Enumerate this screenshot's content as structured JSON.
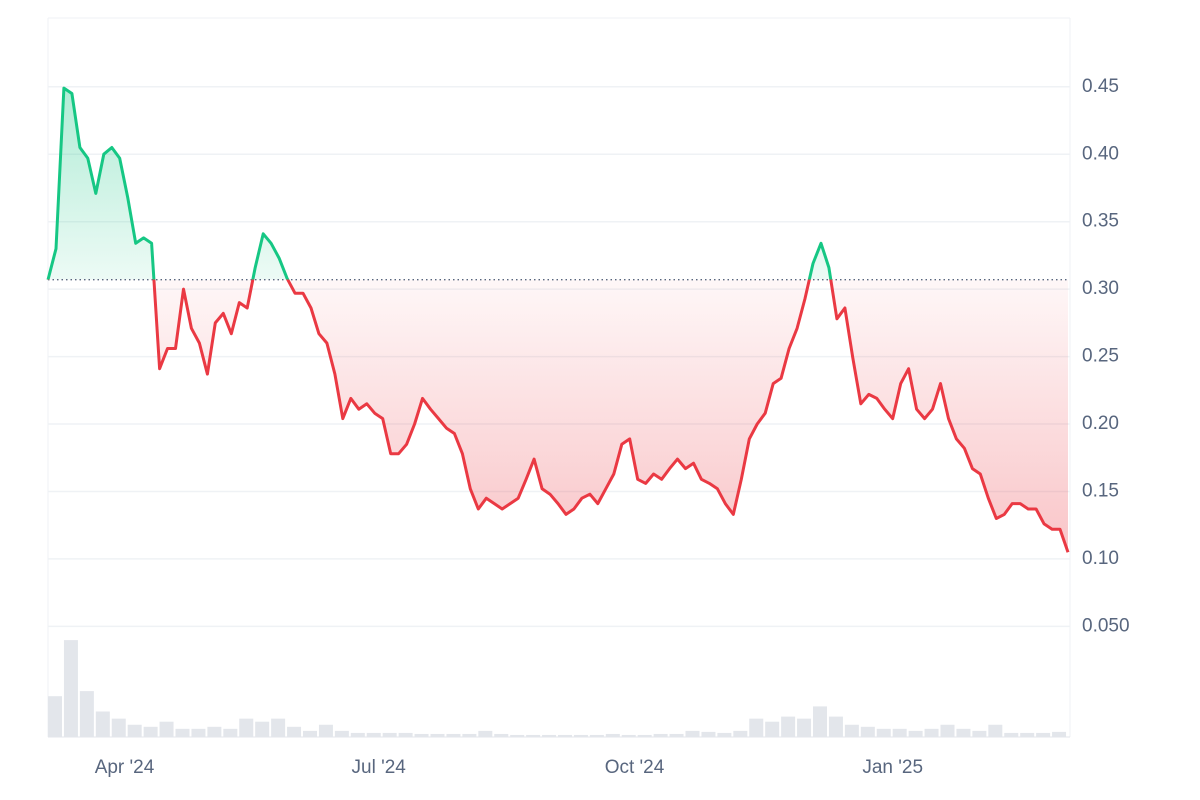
{
  "chart_data": {
    "type": "line",
    "color_up": "#16c784",
    "color_down": "#ea3943",
    "baseline": 0.307,
    "grid": true,
    "xlim": [
      0,
      128
    ],
    "xticks": [
      {
        "value": 9.6,
        "label": "Apr '24"
      },
      {
        "value": 41.5,
        "label": "Jul '24"
      },
      {
        "value": 73.6,
        "label": "Oct '24"
      },
      {
        "value": 106,
        "label": "Jan '25"
      }
    ],
    "ylim": [
      -0.032,
      0.501
    ],
    "yticks": [
      {
        "value": 0.05,
        "label": "0.050"
      },
      {
        "value": 0.1,
        "label": "0.10"
      },
      0.15,
      {
        "value": 0.2,
        "label": "0.20"
      },
      0.25,
      {
        "value": 0.3,
        "label": "0.30"
      },
      0.35,
      {
        "value": 0.4,
        "label": "0.40"
      },
      0.45
    ],
    "values": [
      0.307,
      0.33,
      0.449,
      0.445,
      0.405,
      0.397,
      0.371,
      0.4,
      0.405,
      0.397,
      0.368,
      0.334,
      0.338,
      0.334,
      0.241,
      0.256,
      0.256,
      0.3,
      0.271,
      0.26,
      0.237,
      0.275,
      0.282,
      0.267,
      0.29,
      0.286,
      0.316,
      0.341,
      0.334,
      0.323,
      0.308,
      0.297,
      0.297,
      0.286,
      0.267,
      0.26,
      0.237,
      0.204,
      0.219,
      0.211,
      0.215,
      0.208,
      0.204,
      0.178,
      0.178,
      0.185,
      0.2,
      0.219,
      0.211,
      0.204,
      0.197,
      0.193,
      0.178,
      0.152,
      0.137,
      0.145,
      0.141,
      0.137,
      0.141,
      0.145,
      0.159,
      0.174,
      0.152,
      0.148,
      0.141,
      0.133,
      0.137,
      0.145,
      0.148,
      0.141,
      0.152,
      0.163,
      0.185,
      0.189,
      0.159,
      0.156,
      0.163,
      0.159,
      0.167,
      0.174,
      0.167,
      0.171,
      0.159,
      0.156,
      0.152,
      0.141,
      0.133,
      0.159,
      0.189,
      0.2,
      0.208,
      0.23,
      0.234,
      0.256,
      0.271,
      0.293,
      0.319,
      0.334,
      0.316,
      0.278,
      0.286,
      0.249,
      0.215,
      0.222,
      0.219,
      0.211,
      0.204,
      0.23,
      0.241,
      0.211,
      0.204,
      0.211,
      0.23,
      0.204,
      0.189,
      0.182,
      0.167,
      0.163,
      0.145,
      0.13,
      0.133,
      0.141,
      0.141,
      0.137,
      0.137,
      0.126,
      0.122,
      0.122,
      0.105
    ],
    "volume": {
      "color": "#e3e6eb",
      "ylim": [
        0,
        100
      ],
      "values": [
        40,
        95,
        45,
        25,
        18,
        12,
        10,
        15,
        8,
        8,
        10,
        8,
        18,
        15,
        18,
        10,
        6,
        12,
        6,
        4,
        4,
        4,
        4,
        3,
        3,
        3,
        3,
        6,
        3,
        2,
        2,
        2,
        2,
        2,
        2,
        3,
        2,
        2,
        3,
        3,
        6,
        5,
        4,
        6,
        18,
        15,
        20,
        18,
        30,
        20,
        12,
        10,
        8,
        8,
        6,
        8,
        12,
        8,
        6,
        12,
        4,
        4,
        4,
        5
      ]
    }
  }
}
